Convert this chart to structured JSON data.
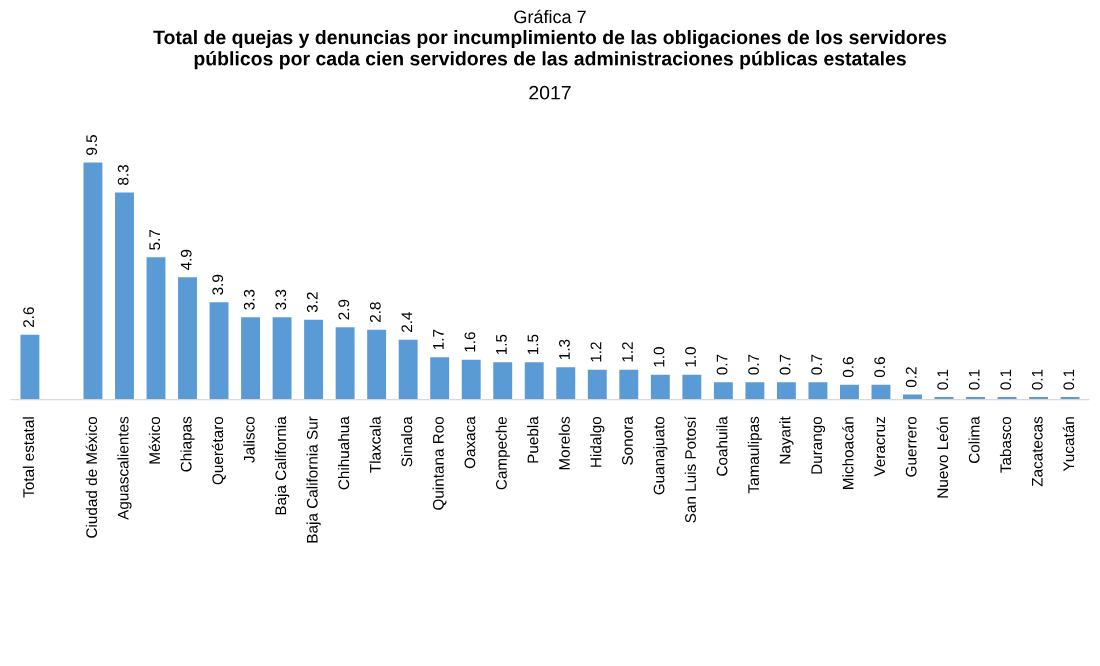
{
  "chart_data": {
    "type": "bar",
    "title": "Total de quejas y denuncias por incumplimiento de las obligaciones de los servidores\npúblicos por cada cien servidores de las administraciones públicas estatales",
    "subtitle": "2017",
    "annotations": [
      "Gráfica 7"
    ],
    "categories": [
      "Total estatal",
      null,
      "Ciudad de México",
      "Aguascalientes",
      "México",
      "Chiapas",
      "Querétaro",
      "Jalisco",
      "Baja California",
      "Baja California Sur",
      "Chihuahua",
      "Tlaxcala",
      "Sinaloa",
      "Quintana Roo",
      "Oaxaca",
      "Campeche",
      "Puebla",
      "Morelos",
      "Hidalgo",
      "Sonora",
      "Guanajuato",
      "San Luis Potosí",
      "Coahuila",
      "Tamaulipas",
      "Nayarit",
      "Durango",
      "Michoacán",
      "Veracruz",
      "Guerrero",
      "Nuevo León",
      "Colima",
      "Tabasco",
      "Zacatecas",
      "Yucatán"
    ],
    "values": [
      2.6,
      null,
      9.5,
      8.3,
      5.7,
      4.9,
      3.9,
      3.3,
      3.3,
      3.2,
      2.9,
      2.8,
      2.4,
      1.7,
      1.6,
      1.5,
      1.5,
      1.3,
      1.2,
      1.2,
      1.0,
      1.0,
      0.7,
      0.7,
      0.7,
      0.7,
      0.6,
      0.6,
      0.2,
      0.1,
      0.1,
      0.1,
      0.1,
      0.1
    ],
    "value_labels": [
      "2.6",
      null,
      "9.5",
      "8.3",
      "5.7",
      "4.9",
      "3.9",
      "3.3",
      "3.3",
      "3.2",
      "2.9",
      "2.8",
      "2.4",
      "1.7",
      "1.6",
      "1.5",
      "1.5",
      "1.3",
      "1.2",
      "1.2",
      "1.0",
      "1.0",
      "0.7",
      "0.7",
      "0.7",
      "0.7",
      "0.6",
      "0.6",
      "0.2",
      "0.1",
      "0.1",
      "0.1",
      "0.1",
      "0.1"
    ],
    "color": "#5b9bd5",
    "grid": false,
    "legend": false
  }
}
